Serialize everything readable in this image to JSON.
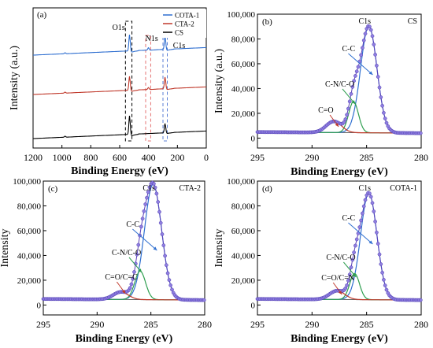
{
  "panels": [
    {
      "id": "a",
      "type": "line",
      "panel_label": "(a)",
      "xlabel": "Binding Energy (eV)",
      "ylabel": "Intensity (a.u.)",
      "xlim": [
        1200,
        0
      ],
      "x_reversed": true,
      "xticks": [
        1200,
        1000,
        800,
        600,
        400,
        200,
        0
      ],
      "yticks_visible": false,
      "legend": {
        "placement": "top-right",
        "entries": [
          {
            "name": "COTA-1",
            "color": "#2f6fd0"
          },
          {
            "name": "CTA-2",
            "color": "#c0392b"
          },
          {
            "name": "CS",
            "color": "#000000"
          }
        ]
      },
      "annotations": [
        {
          "text": "O1s",
          "x": 531
        },
        {
          "text": "N1s",
          "x": 400
        },
        {
          "text": "C1s",
          "x": 285
        }
      ],
      "highlight_regions": [
        {
          "label": "O1s",
          "range": [
            560,
            515
          ],
          "color": "#000000"
        },
        {
          "label": "N1s",
          "range": [
            420,
            385
          ],
          "color": "#e57373"
        },
        {
          "label": "C1s",
          "range": [
            300,
            270
          ],
          "color": "#5b7fd6"
        }
      ],
      "series": [
        {
          "name": "COTA-1",
          "color": "#2f6fd0",
          "baseline": 0.92,
          "peaks": [
            [
              531,
              0.35
            ],
            [
              400,
              0.05
            ],
            [
              285,
              0.28
            ],
            [
              978,
              0.02
            ]
          ]
        },
        {
          "name": "CTA-2",
          "color": "#c0392b",
          "baseline": 0.6,
          "peaks": [
            [
              531,
              0.3
            ],
            [
              400,
              0.04
            ],
            [
              285,
              0.25
            ],
            [
              978,
              0.02
            ]
          ]
        },
        {
          "name": "CS",
          "color": "#000000",
          "baseline": 0.15,
          "peaks": [
            [
              531,
              0.4
            ],
            [
              285,
              0.2
            ],
            [
              978,
              0.02
            ]
          ]
        }
      ]
    },
    {
      "id": "b",
      "type": "scatter",
      "panel_label": "(b)",
      "sample": "CS",
      "xlabel": "Binding Energy (eV)",
      "ylabel": "Intensity (a.u.)",
      "xlim": [
        295,
        280
      ],
      "x_reversed": true,
      "xticks": [
        295,
        290,
        285,
        280
      ],
      "ylim": [
        -8000,
        100000
      ],
      "yticks": [
        0,
        20000,
        40000,
        60000,
        80000,
        100000
      ],
      "ytick_labels": [
        "0",
        "20,000",
        "40,000",
        "60,000",
        "80,000",
        "100,000"
      ],
      "background": 4000,
      "components": [
        {
          "label": "C1s",
          "role": "envelope"
        },
        {
          "label": "C-C",
          "center": 284.8,
          "height": 86000,
          "sigma": 0.75,
          "color": "#2f6fd0"
        },
        {
          "label": "C-N/C-O",
          "center": 286.2,
          "height": 25000,
          "sigma": 0.45,
          "color": "#2e9e4f"
        },
        {
          "label": "C=O",
          "center": 288.0,
          "height": 9000,
          "sigma": 0.7,
          "color": "#c0392b"
        }
      ]
    },
    {
      "id": "c",
      "type": "scatter",
      "panel_label": "(c)",
      "sample": "CTA-2",
      "xlabel": "Binding Energy (eV)",
      "ylabel": "Intensity",
      "xlim": [
        295,
        280
      ],
      "x_reversed": true,
      "xticks": [
        295,
        290,
        285,
        280
      ],
      "ylim": [
        -8000,
        100000
      ],
      "yticks": [
        0,
        20000,
        40000,
        60000,
        80000,
        100000
      ],
      "ytick_labels": [
        "0",
        "20,000",
        "40,000",
        "60,000",
        "80,000",
        "100,000"
      ],
      "background": 4000,
      "components": [
        {
          "label": "C1s",
          "role": "envelope"
        },
        {
          "label": "C-C",
          "center": 284.8,
          "height": 93000,
          "sigma": 0.8,
          "color": "#2f6fd0"
        },
        {
          "label": "C-N/C-O",
          "center": 286.0,
          "height": 23000,
          "sigma": 0.5,
          "color": "#2e9e4f"
        },
        {
          "label": "C=O/C=C",
          "center": 287.8,
          "height": 6000,
          "sigma": 0.7,
          "color": "#c0392b"
        }
      ]
    },
    {
      "id": "d",
      "type": "scatter",
      "panel_label": "(d)",
      "sample": "COTA-1",
      "xlabel": "Binding Energy (eV)",
      "ylabel": "Intensity",
      "xlim": [
        295,
        280
      ],
      "x_reversed": true,
      "xticks": [
        295,
        290,
        285,
        280
      ],
      "ylim": [
        -8000,
        100000
      ],
      "yticks": [
        0,
        20000,
        40000,
        60000,
        80000,
        100000
      ],
      "ytick_labels": [
        "0",
        "20,000",
        "40,000",
        "60,000",
        "80,000",
        "100,000"
      ],
      "background": 4000,
      "components": [
        {
          "label": "C1s",
          "role": "envelope"
        },
        {
          "label": "C-C",
          "center": 284.8,
          "height": 86000,
          "sigma": 0.75,
          "color": "#2f6fd0"
        },
        {
          "label": "C-N/C-O",
          "center": 286.1,
          "height": 21000,
          "sigma": 0.45,
          "color": "#2e9e4f"
        },
        {
          "label": "C=O/C=N",
          "center": 287.7,
          "height": 7000,
          "sigma": 0.7,
          "color": "#c0392b"
        }
      ]
    }
  ]
}
